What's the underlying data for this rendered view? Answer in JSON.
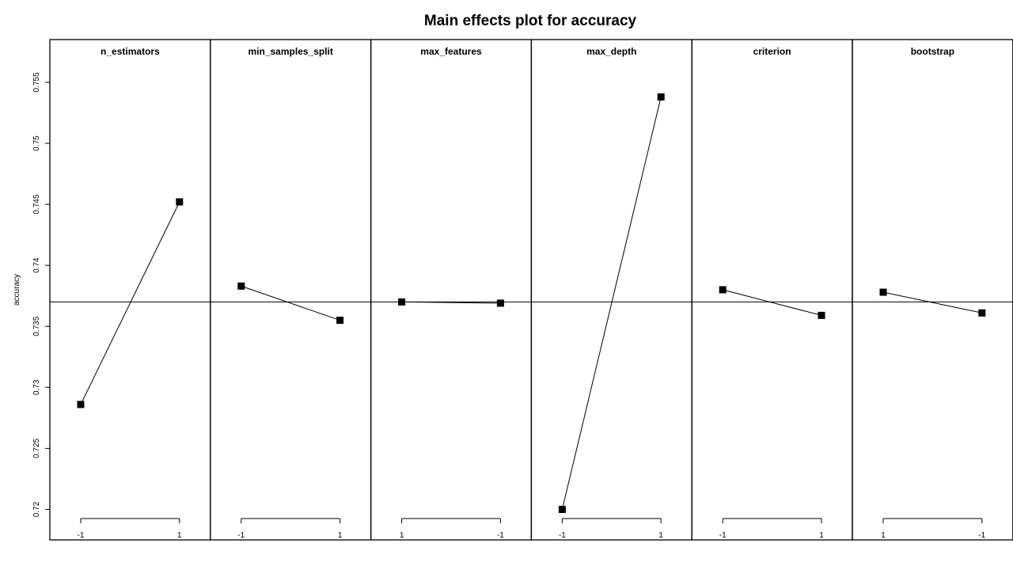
{
  "chart_data": {
    "type": "line",
    "title": "Main effects plot for accuracy",
    "ylabel": "accuracy",
    "ylim": [
      0.7175,
      0.7585
    ],
    "yticks": [
      "0.72",
      "0.725",
      "0.73",
      "0.735",
      "0.74",
      "0.745",
      "0.75",
      "0.755"
    ],
    "grand_mean": 0.737,
    "marker": "square",
    "color": "#000000",
    "panels": [
      {
        "name": "n_estimators",
        "levels": [
          "-1",
          "1"
        ],
        "values": [
          0.7286,
          0.7452
        ]
      },
      {
        "name": "min_samples_split",
        "levels": [
          "-1",
          "1"
        ],
        "values": [
          0.7383,
          0.7355
        ]
      },
      {
        "name": "max_features",
        "levels": [
          "1",
          "-1"
        ],
        "values": [
          0.737,
          0.7369
        ]
      },
      {
        "name": "max_depth",
        "levels": [
          "-1",
          "1"
        ],
        "values": [
          0.72,
          0.7538
        ]
      },
      {
        "name": "criterion",
        "levels": [
          "-1",
          "1"
        ],
        "values": [
          0.738,
          0.7359
        ]
      },
      {
        "name": "bootstrap",
        "levels": [
          "1",
          "-1"
        ],
        "values": [
          0.7378,
          0.7361
        ]
      }
    ]
  }
}
